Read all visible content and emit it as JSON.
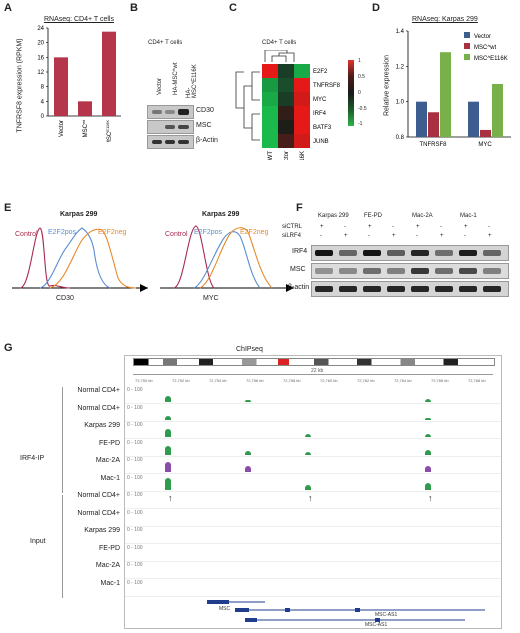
{
  "panels": {
    "A": {
      "letter": "A",
      "title": "RNAseq: CD4+ T cells",
      "ylabel": "TNFRSF8 expression (RPKM)",
      "yticks": [
        "0",
        "4",
        "8",
        "12",
        "16",
        "20",
        "24"
      ],
      "categories": [
        "Vector",
        "MSC^wt",
        "MSC^E116K"
      ],
      "cat_main": [
        "Vector",
        "MSC",
        "MSC"
      ],
      "cat_sup": [
        "",
        "wt",
        "E116K"
      ]
    },
    "B": {
      "letter": "B",
      "title": "CD4+ T cells",
      "lanes": [
        "Vector",
        "HA-MSC^wt",
        "HA-MSC^E116K"
      ],
      "rows": [
        "CD30",
        "MSC",
        "β-Actin"
      ]
    },
    "C": {
      "letter": "C",
      "title": "CD4+ T cells",
      "genes": [
        "E2F2",
        "TNFRSF8",
        "MYC",
        "IRF4",
        "BATF3",
        "JUNB"
      ],
      "columns": [
        "WT",
        "Vector",
        "E116K"
      ],
      "scale_labels": [
        "1",
        "0.5",
        "0",
        "-0.5",
        "-1"
      ]
    },
    "D": {
      "letter": "D",
      "title": "RNAseq: Karpas 299",
      "ylabel": "Relative expression",
      "yticks": [
        "0.8",
        "1.0",
        "1.2",
        "1.4"
      ],
      "groups": [
        "TNFRSF8",
        "MYC"
      ],
      "legend": [
        "Vector",
        "MSC^wt",
        "MSC^E116K"
      ]
    },
    "E": {
      "letter": "E",
      "plot1_title": "Karpas 299",
      "plot2_title": "Karpas 299",
      "plot1_xlabel": "CD30",
      "plot2_xlabel": "MYC",
      "curve_labels": [
        "Control",
        "E2F2pos",
        "E2F2neg"
      ]
    },
    "F": {
      "letter": "F",
      "cell_lines": [
        "Karpas 299",
        "FE-PD",
        "Mac-2A",
        "Mac-1"
      ],
      "row_siCTRL": "siCTRL",
      "row_siLRF4": "siLRF4",
      "signs_ctrl": [
        "+",
        "-",
        "+",
        "-",
        "+",
        "-",
        "+",
        "-"
      ],
      "signs_irf4": [
        "-",
        "+",
        "-",
        "+",
        "-",
        "+",
        "-",
        "+"
      ],
      "blots": [
        "IRF4",
        "MSC",
        "β-actin"
      ]
    },
    "G": {
      "letter": "G",
      "title": "ChIPseq",
      "group1": "IRF4-IP",
      "group2": "Input",
      "tracks": [
        "Normal CD4+",
        "Normal CD4+",
        "Karpas 299",
        "FE-PD",
        "Mac-2A",
        "Mac-1",
        "Normal CD4+",
        "Normal CD4+",
        "Karpas 299",
        "FE-PD",
        "Mac-2A",
        "Mac-1"
      ],
      "gene_labels": [
        "MSC",
        "MSC-AS1",
        "MSC-AS1"
      ],
      "scale_label": "22 kb",
      "range_label": "0 - 100",
      "coords": [
        "72,750 kb",
        "72,752 kb",
        "72,754 kb",
        "72,756 kb",
        "72,758 kb",
        "72,760 kb",
        "72,762 kb",
        "72,764 kb",
        "72,766 kb",
        "72,768 kb"
      ]
    }
  },
  "chart_data": [
    {
      "type": "bar",
      "title": "RNAseq: CD4+ T cells",
      "categories": [
        "Vector",
        "MSC^wt",
        "MSC^E116K"
      ],
      "values": [
        16,
        4,
        23
      ],
      "ylabel": "TNFRSF8 expression (RPKM)",
      "ylim": [
        0,
        24
      ],
      "color": "#b5354a"
    },
    {
      "type": "bar",
      "title": "RNAseq: Karpas 299",
      "categories": [
        "TNFRSF8",
        "MYC"
      ],
      "series": [
        {
          "name": "Vector",
          "values": [
            1.0,
            1.0
          ],
          "color": "#3e5d8f"
        },
        {
          "name": "MSC^wt",
          "values": [
            0.94,
            0.84
          ],
          "color": "#a83040"
        },
        {
          "name": "MSC^E116K",
          "values": [
            1.28,
            1.1
          ],
          "color": "#78b04a"
        }
      ],
      "ylabel": "Relative expression",
      "ylim": [
        0.8,
        1.4
      ]
    },
    {
      "type": "heatmap",
      "title": "CD4+ T cells",
      "rows": [
        "E2F2",
        "TNFRSF8",
        "MYC",
        "IRF4",
        "BATF3",
        "JUNB"
      ],
      "columns": [
        "WT",
        "Vector",
        "E116K"
      ],
      "values": [
        [
          1,
          -0.2,
          -0.9
        ],
        [
          -0.8,
          -0.3,
          1
        ],
        [
          -0.9,
          -0.2,
          0.9
        ],
        [
          -1,
          0.1,
          1
        ],
        [
          -1,
          0,
          1
        ],
        [
          -1,
          0.2,
          0.9
        ]
      ],
      "scale": [
        -1,
        1
      ]
    }
  ]
}
